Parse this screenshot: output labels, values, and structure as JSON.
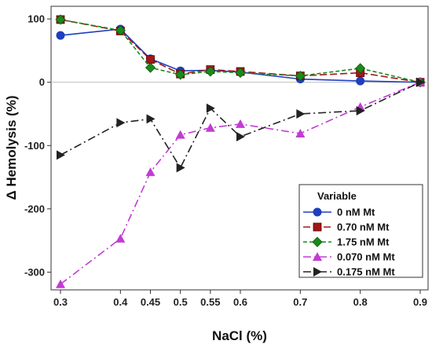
{
  "chart_data": {
    "type": "line",
    "xlabel": "NaCl (%)",
    "ylabel": "Δ Hemolysis (%)",
    "categories": [
      "0.3",
      "0.4",
      "0.45",
      "0.5",
      "0.55",
      "0.6",
      "0.7",
      "0.8",
      "0.9"
    ],
    "yticks": [
      "-300",
      "-200",
      "-100",
      "0",
      "100"
    ],
    "ylim": [
      -328,
      120
    ],
    "legend": {
      "title": "Variable",
      "placement": "bottom-right"
    },
    "series": [
      {
        "name": "0 nM Mt",
        "color": "#1f3fbf",
        "marker": "circle",
        "dash": "solid",
        "values": [
          74,
          84,
          37,
          18,
          19,
          16,
          5,
          2,
          0
        ]
      },
      {
        "name": "0.70 nM Mt",
        "color": "#a01818",
        "marker": "square",
        "dash": "long-dash",
        "values": [
          99,
          81,
          36,
          13,
          20,
          17,
          10,
          15,
          0
        ]
      },
      {
        "name": "1.75 nM Mt",
        "color": "#1a8a1a",
        "marker": "diamond",
        "dash": "short-dash",
        "values": [
          99,
          82,
          23,
          12,
          17,
          15,
          10,
          22,
          0
        ]
      },
      {
        "name": "0.070 nM Mt",
        "color": "#c23bd4",
        "marker": "triangle",
        "dash": "dash-dot",
        "values": [
          -319,
          -247,
          -142,
          -83,
          -72,
          -66,
          -81,
          -39,
          0
        ]
      },
      {
        "name": "0.175 nM Mt",
        "color": "#222222",
        "marker": "triangle-right",
        "dash": "dash-dot",
        "values": [
          -115,
          -64,
          -58,
          -135,
          -41,
          -86,
          -50,
          -45,
          0
        ]
      }
    ]
  }
}
